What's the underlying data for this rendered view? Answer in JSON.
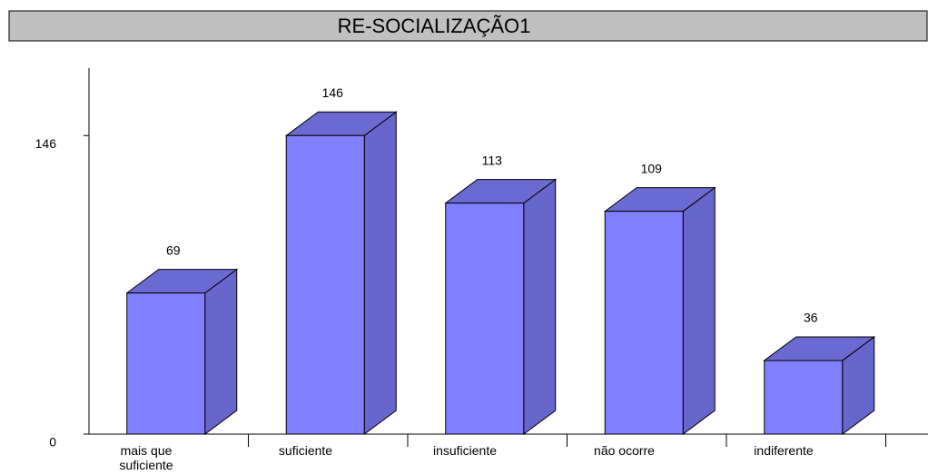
{
  "chart_data": {
    "type": "bar3d",
    "title": "RE-SOCIALIZAÇÃO1",
    "categories": [
      "mais que suficiente",
      "suficiente",
      "insuficiente",
      "não ocorre",
      "indiferente"
    ],
    "values": [
      69,
      146,
      113,
      109,
      36
    ],
    "color": "#8080ff",
    "ylim": [
      0,
      179
    ],
    "yticks": [
      0,
      146
    ]
  }
}
